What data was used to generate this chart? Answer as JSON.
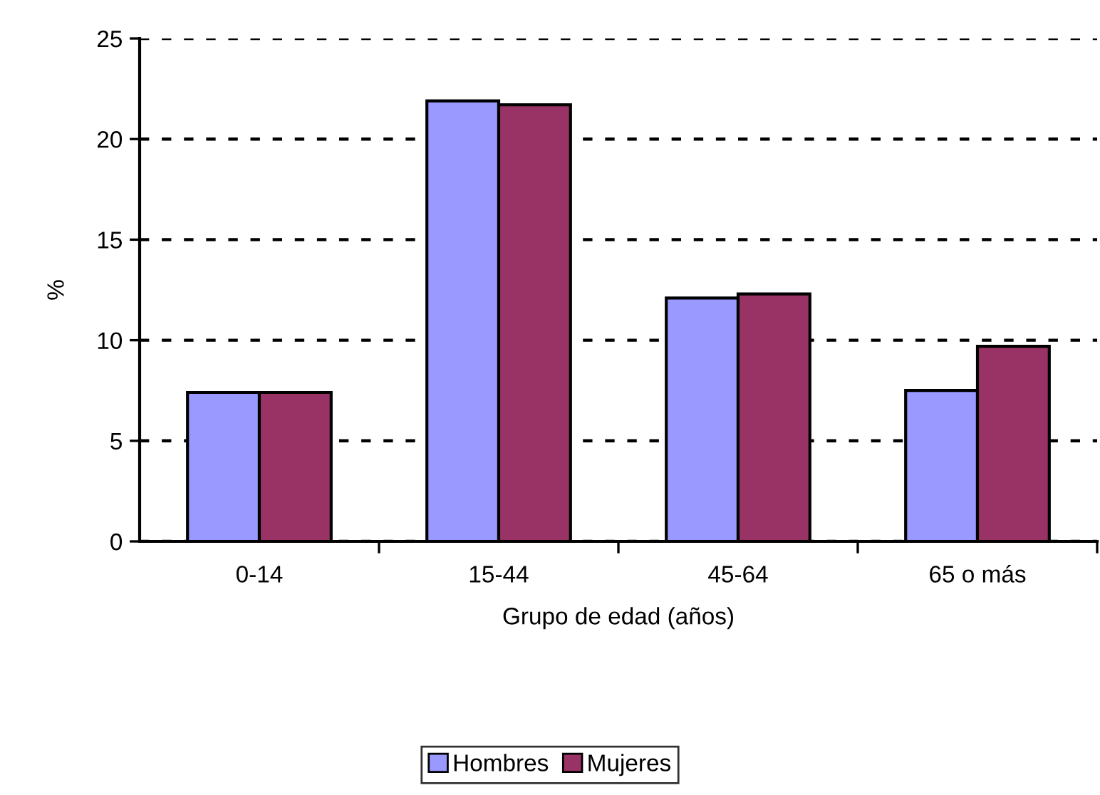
{
  "chart_data": {
    "type": "bar",
    "xlabel": "Grupo de edad (años)",
    "ylabel": "%",
    "categories": [
      "0-14",
      "15-44",
      "45-64",
      "65 o más"
    ],
    "series": [
      {
        "name": "Hombres",
        "color": "#9999ff",
        "values": [
          7.4,
          21.9,
          12.1,
          7.5
        ]
      },
      {
        "name": "Mujeres",
        "color": "#993366",
        "values": [
          7.4,
          21.7,
          12.3,
          9.7
        ]
      }
    ],
    "ylim": [
      0,
      25
    ],
    "yticks": [
      0,
      5,
      10,
      15,
      20,
      25
    ],
    "grid": "y",
    "legend": "bottom"
  }
}
